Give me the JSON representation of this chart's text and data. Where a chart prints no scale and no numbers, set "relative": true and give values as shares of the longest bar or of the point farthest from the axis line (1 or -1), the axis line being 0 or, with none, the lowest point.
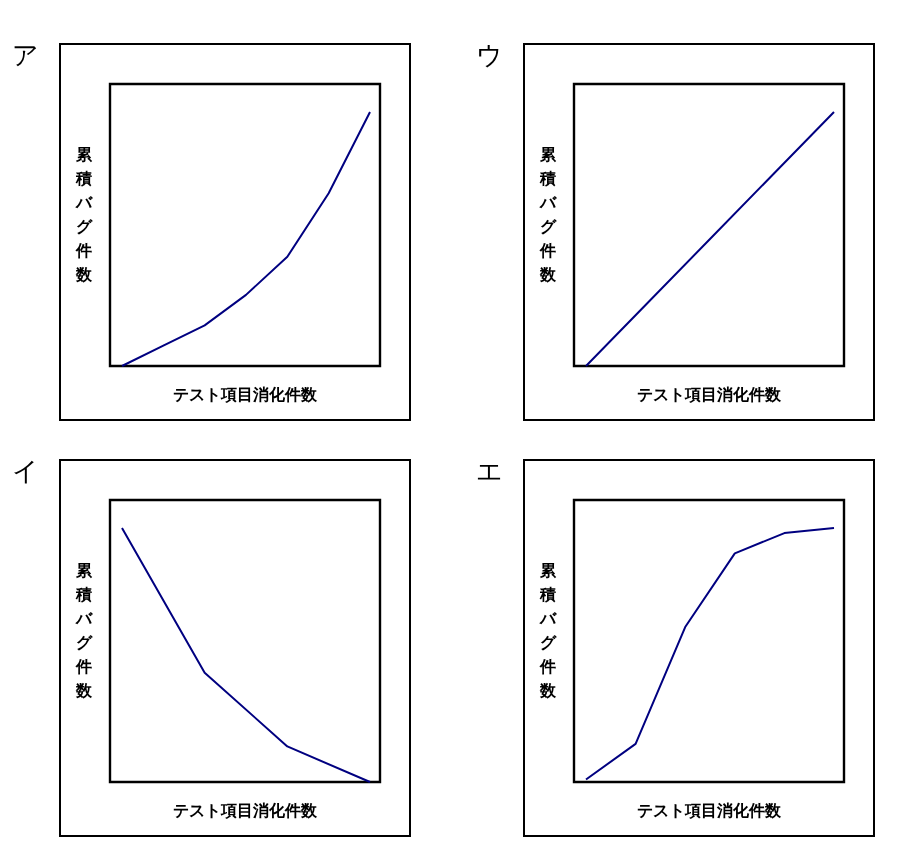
{
  "chart_data": [
    {
      "type": "line",
      "title": "ア",
      "xlabel": "テスト項目消化件数",
      "ylabel": "累積バグ件数",
      "relative": true,
      "categories": [
        null,
        null,
        null,
        null,
        null,
        null,
        null
      ],
      "series": [
        {
          "color": "#000080",
          "values": [
            0,
            0.08,
            0.16,
            0.28,
            0.43,
            0.68,
            1
          ]
        }
      ]
    },
    {
      "type": "line",
      "title": "ウ",
      "xlabel": "テスト項目消化件数",
      "ylabel": "累積バグ件数",
      "relative": true,
      "categories": [
        null,
        null,
        null,
        null,
        null
      ],
      "series": [
        {
          "color": "#000080",
          "values": [
            0,
            0.25,
            0.5,
            0.75,
            1
          ]
        }
      ]
    },
    {
      "type": "line",
      "title": "イ",
      "xlabel": "テスト項目消化件数",
      "ylabel": "累積バグ件数",
      "relative": true,
      "categories": [
        null,
        null,
        null,
        null
      ],
      "series": [
        {
          "color": "#000080",
          "values": [
            1,
            0.43,
            0.14,
            0
          ]
        }
      ]
    },
    {
      "type": "line",
      "title": "エ",
      "xlabel": "テスト項目消化件数",
      "ylabel": "累積バグ件数",
      "relative": true,
      "categories": [
        null,
        null,
        null,
        null,
        null,
        null
      ],
      "series": [
        {
          "color": "#000080",
          "values": [
            0.01,
            0.15,
            0.61,
            0.9,
            0.98,
            1
          ]
        }
      ]
    }
  ]
}
